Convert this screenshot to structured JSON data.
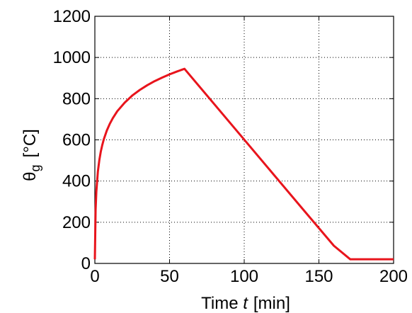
{
  "chart_data": {
    "type": "line",
    "xlabel": {
      "prefix": "Time ",
      "variable": "t",
      "unit": "[min]"
    },
    "ylabel": {
      "symbol": "θ",
      "subscript": "g",
      "unit": "[°C]"
    },
    "xlim": [
      0,
      200
    ],
    "ylim": [
      0,
      1200
    ],
    "xticks": [
      "0",
      "50",
      "100",
      "150",
      "200"
    ],
    "yticks": [
      "0",
      "200",
      "400",
      "600",
      "800",
      "1000",
      "1200"
    ],
    "grid": true,
    "series": [
      {
        "color": "#e8141c",
        "x": [
          0,
          0.5,
          1,
          2,
          3,
          4,
          5,
          6,
          8,
          10,
          12,
          15,
          20,
          25,
          30,
          35,
          40,
          45,
          50,
          55,
          60,
          80,
          100,
          120,
          140,
          160,
          171,
          200
        ],
        "y": [
          20,
          261,
          349,
          445,
          502,
          544,
          576,
          603,
          645,
          678,
          705,
          739,
          781,
          815,
          842,
          865,
          885,
          902,
          918,
          932,
          945,
          773,
          601,
          429,
          257,
          86,
          20,
          20
        ]
      }
    ]
  }
}
